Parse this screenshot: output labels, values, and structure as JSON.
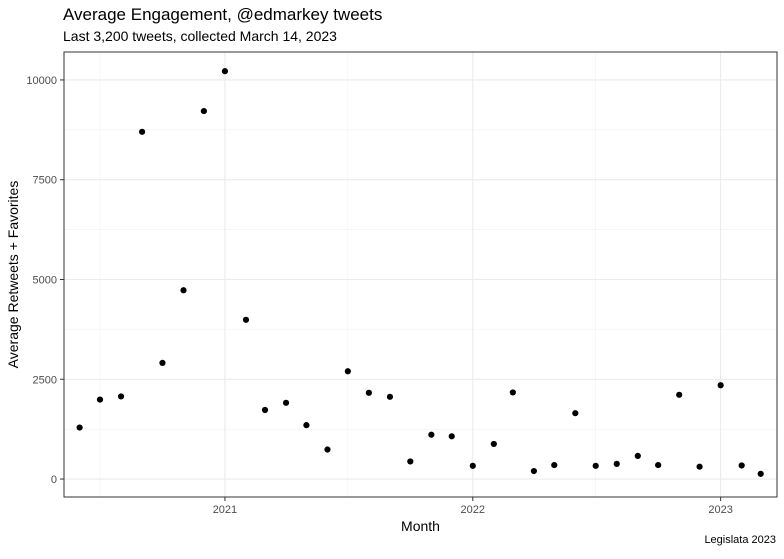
{
  "title": "Average Engagement, @edmarkey tweets",
  "subtitle": "Last 3,200 tweets, collected March 14, 2023",
  "caption": "Legislata 2023",
  "chart_data": {
    "type": "scatter",
    "title": "Average Engagement, @edmarkey tweets",
    "subtitle": "Last 3,200 tweets, collected March 14, 2023",
    "xlabel": "Month",
    "ylabel": "Average Retweets + Favorites",
    "caption": "Legislata 2023",
    "xlim": [
      "2020-05-09",
      "2023-03-25"
    ],
    "ylim": [
      -450,
      10700
    ],
    "x_ticks": [
      {
        "date": "2021-01-01",
        "label": "2021"
      },
      {
        "date": "2022-01-01",
        "label": "2022"
      },
      {
        "date": "2023-01-01",
        "label": "2023"
      }
    ],
    "y_ticks": [
      {
        "value": 0,
        "label": "0"
      },
      {
        "value": 2500,
        "label": "2500"
      },
      {
        "value": 5000,
        "label": "5000"
      },
      {
        "value": 7500,
        "label": "7500"
      },
      {
        "value": 10000,
        "label": "10000"
      }
    ],
    "grid": true,
    "points": [
      {
        "x": "2020-06-01",
        "y": 1290
      },
      {
        "x": "2020-07-01",
        "y": 1990
      },
      {
        "x": "2020-08-01",
        "y": 2070
      },
      {
        "x": "2020-09-01",
        "y": 8700
      },
      {
        "x": "2020-10-01",
        "y": 2910
      },
      {
        "x": "2020-11-01",
        "y": 4730
      },
      {
        "x": "2020-12-01",
        "y": 9220
      },
      {
        "x": "2021-01-01",
        "y": 10220
      },
      {
        "x": "2021-02-01",
        "y": 3990
      },
      {
        "x": "2021-03-01",
        "y": 1730
      },
      {
        "x": "2021-04-01",
        "y": 1910
      },
      {
        "x": "2021-05-01",
        "y": 1350
      },
      {
        "x": "2021-06-01",
        "y": 740
      },
      {
        "x": "2021-07-01",
        "y": 2700
      },
      {
        "x": "2021-08-01",
        "y": 2160
      },
      {
        "x": "2021-09-01",
        "y": 2060
      },
      {
        "x": "2021-10-01",
        "y": 440
      },
      {
        "x": "2021-11-01",
        "y": 1110
      },
      {
        "x": "2021-12-01",
        "y": 1070
      },
      {
        "x": "2022-01-01",
        "y": 330
      },
      {
        "x": "2022-02-01",
        "y": 880
      },
      {
        "x": "2022-03-01",
        "y": 2170
      },
      {
        "x": "2022-04-01",
        "y": 200
      },
      {
        "x": "2022-05-01",
        "y": 350
      },
      {
        "x": "2022-06-01",
        "y": 1650
      },
      {
        "x": "2022-07-01",
        "y": 330
      },
      {
        "x": "2022-08-01",
        "y": 380
      },
      {
        "x": "2022-09-01",
        "y": 580
      },
      {
        "x": "2022-10-01",
        "y": 350
      },
      {
        "x": "2022-11-01",
        "y": 2110
      },
      {
        "x": "2022-12-01",
        "y": 310
      },
      {
        "x": "2023-01-01",
        "y": 2350
      },
      {
        "x": "2023-02-01",
        "y": 340
      },
      {
        "x": "2023-03-01",
        "y": 130
      }
    ]
  }
}
